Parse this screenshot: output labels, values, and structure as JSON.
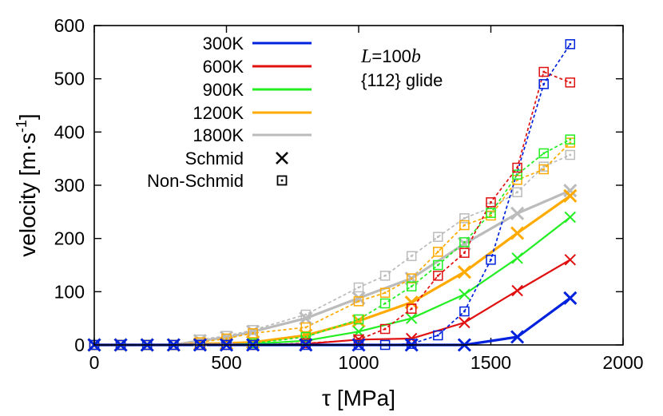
{
  "chart_data": {
    "type": "line",
    "xlabel": "τ [MPa]",
    "ylabel_main": "velocity [m·s",
    "ylabel_sup": "-1",
    "ylabel_close": "]",
    "xlim": [
      0,
      2000
    ],
    "ylim": [
      0,
      600
    ],
    "xticks": [
      0,
      500,
      1000,
      1500,
      2000
    ],
    "yticks": [
      0,
      100,
      200,
      300,
      400,
      500,
      600
    ],
    "grid": false,
    "annotation": {
      "l_italic": "L",
      "l_mid": "=100",
      "l_b": "b",
      "glide": "{112} glide"
    },
    "legend": {
      "placement": "top-left",
      "temps": [
        "300K",
        "600K",
        "900K",
        "1200K",
        "1800K"
      ],
      "schmid": "Schmid",
      "non_schmid": "Non-Schmid"
    },
    "series": [
      {
        "name": "300K",
        "color": "#0022dd",
        "schmid": {
          "x": [
            0,
            100,
            200,
            300,
            400,
            500,
            600,
            800,
            1000,
            1200,
            1400,
            1600,
            1800
          ],
          "y": [
            0,
            0,
            0,
            0,
            0,
            0,
            0,
            0,
            0,
            0,
            0,
            15,
            88
          ]
        },
        "non_schmid": {
          "x": [
            0,
            100,
            200,
            300,
            400,
            500,
            600,
            800,
            1000,
            1100,
            1200,
            1300,
            1400,
            1500,
            1700,
            1800
          ],
          "y": [
            0,
            0,
            0,
            0,
            0,
            0,
            0,
            0,
            0,
            0,
            2,
            18,
            63,
            160,
            490,
            565
          ]
        }
      },
      {
        "name": "600K",
        "color": "#e01010",
        "schmid": {
          "x": [
            0,
            100,
            200,
            300,
            400,
            500,
            600,
            800,
            1000,
            1200,
            1400,
            1600,
            1800
          ],
          "y": [
            0,
            0,
            0,
            0,
            0,
            0,
            0,
            2,
            10,
            12,
            42,
            102,
            160
          ]
        },
        "non_schmid": {
          "x": [
            0,
            100,
            200,
            300,
            400,
            500,
            600,
            800,
            1000,
            1100,
            1200,
            1300,
            1400,
            1500,
            1600,
            1700,
            1800
          ],
          "y": [
            0,
            0,
            0,
            0,
            0,
            0,
            0,
            3,
            10,
            30,
            68,
            130,
            173,
            268,
            333,
            513,
            493
          ]
        }
      },
      {
        "name": "900K",
        "color": "#22ee22",
        "schmid": {
          "x": [
            0,
            100,
            200,
            300,
            400,
            500,
            600,
            800,
            1000,
            1200,
            1400,
            1600,
            1800
          ],
          "y": [
            0,
            0,
            0,
            0,
            0,
            0,
            2,
            8,
            25,
            50,
            95,
            163,
            240
          ]
        },
        "non_schmid": {
          "x": [
            0,
            100,
            200,
            300,
            400,
            500,
            600,
            800,
            1000,
            1100,
            1200,
            1300,
            1400,
            1500,
            1600,
            1700,
            1800
          ],
          "y": [
            0,
            0,
            0,
            0,
            0,
            0,
            3,
            15,
            48,
            78,
            110,
            150,
            193,
            248,
            320,
            360,
            386
          ]
        }
      },
      {
        "name": "1200K",
        "color": "#ffaa00",
        "schmid": {
          "x": [
            0,
            100,
            200,
            300,
            400,
            500,
            600,
            800,
            1000,
            1200,
            1400,
            1600,
            1800
          ],
          "y": [
            0,
            0,
            0,
            0,
            2,
            3,
            5,
            18,
            45,
            80,
            137,
            210,
            280
          ]
        },
        "non_schmid": {
          "x": [
            0,
            100,
            200,
            300,
            400,
            500,
            600,
            800,
            1000,
            1100,
            1200,
            1300,
            1400,
            1500,
            1600,
            1700,
            1800
          ],
          "y": [
            0,
            0,
            0,
            0,
            5,
            12,
            22,
            33,
            82,
            98,
            125,
            175,
            225,
            243,
            310,
            330,
            380
          ]
        }
      },
      {
        "name": "1800K",
        "color": "#bbbbbb",
        "schmid": {
          "x": [
            0,
            100,
            200,
            300,
            400,
            500,
            600,
            800,
            1000,
            1200,
            1400,
            1600,
            1800
          ],
          "y": [
            0,
            0,
            0,
            0,
            8,
            14,
            25,
            50,
            88,
            125,
            190,
            247,
            290
          ]
        },
        "non_schmid": {
          "x": [
            0,
            100,
            200,
            300,
            400,
            500,
            600,
            800,
            1000,
            1100,
            1200,
            1300,
            1400,
            1500,
            1600,
            1700,
            1800
          ],
          "y": [
            0,
            0,
            0,
            0,
            10,
            17,
            28,
            57,
            108,
            130,
            167,
            203,
            238,
            258,
            287,
            335,
            357
          ]
        }
      }
    ]
  }
}
